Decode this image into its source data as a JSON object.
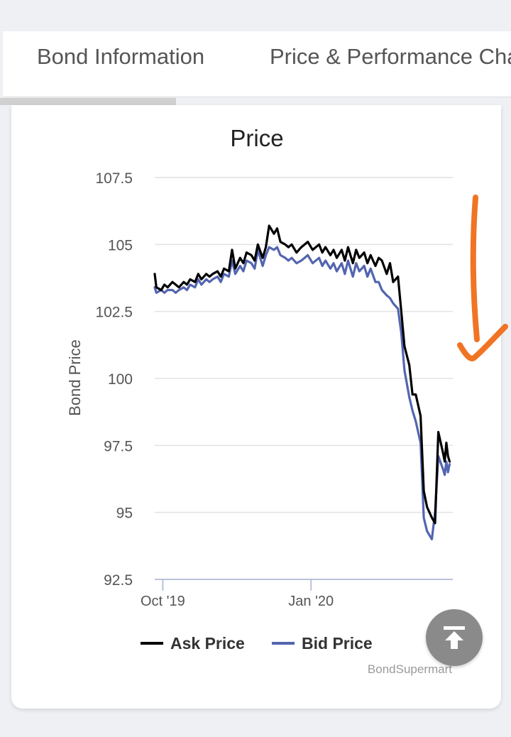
{
  "tabs": [
    {
      "label": "Bond Information"
    },
    {
      "label": "Price & Performance Cha"
    }
  ],
  "colors": {
    "ask": "#000000",
    "bid": "#5365b0",
    "annotation": "#f07424",
    "grid": "#e2e2e2",
    "axis": "#b9c2d9"
  },
  "icons": {
    "scroll_top": "arrow-up-to-line-icon",
    "annotation": "hand-drawn-down-arrow"
  },
  "chart_data": {
    "type": "line",
    "title": "Price",
    "xlabel": "",
    "ylabel": "Bond Price",
    "ylim": [
      92.5,
      107.5
    ],
    "yticks": [
      107.5,
      105,
      102.5,
      100,
      97.5,
      95,
      92.5
    ],
    "ytick_labels": [
      "107.5",
      "105",
      "102.5",
      "100",
      "97.5",
      "95",
      "92.5"
    ],
    "x_ticks": [
      {
        "label": "Oct '19",
        "date": "2019-10-01"
      },
      {
        "label": "Jan '20",
        "date": "2020-01-01"
      }
    ],
    "x_range": [
      "2019-09-26",
      "2020-03-29"
    ],
    "grid": true,
    "legend_position": "bottom",
    "credit": "BondSupermart",
    "x": [
      "2019-09-26",
      "2019-09-27",
      "2019-09-30",
      "2019-10-02",
      "2019-10-04",
      "2019-10-07",
      "2019-10-09",
      "2019-10-11",
      "2019-10-14",
      "2019-10-16",
      "2019-10-18",
      "2019-10-21",
      "2019-10-23",
      "2019-10-25",
      "2019-10-28",
      "2019-10-30",
      "2019-11-01",
      "2019-11-04",
      "2019-11-06",
      "2019-11-08",
      "2019-11-11",
      "2019-11-13",
      "2019-11-15",
      "2019-11-18",
      "2019-11-20",
      "2019-11-22",
      "2019-11-25",
      "2019-11-27",
      "2019-11-29",
      "2019-12-02",
      "2019-12-04",
      "2019-12-06",
      "2019-12-09",
      "2019-12-11",
      "2019-12-13",
      "2019-12-16",
      "2019-12-18",
      "2019-12-20",
      "2019-12-23",
      "2019-12-26",
      "2019-12-30",
      "2020-01-02",
      "2020-01-06",
      "2020-01-08",
      "2020-01-10",
      "2020-01-13",
      "2020-01-15",
      "2020-01-17",
      "2020-01-20",
      "2020-01-22",
      "2020-01-24",
      "2020-01-27",
      "2020-01-29",
      "2020-01-31",
      "2020-02-03",
      "2020-02-05",
      "2020-02-07",
      "2020-02-10",
      "2020-02-12",
      "2020-02-14",
      "2020-02-17",
      "2020-02-19",
      "2020-02-21",
      "2020-02-24",
      "2020-02-26",
      "2020-02-28",
      "2020-03-02",
      "2020-03-04",
      "2020-03-06",
      "2020-03-09",
      "2020-03-11",
      "2020-03-13",
      "2020-03-16",
      "2020-03-18",
      "2020-03-20",
      "2020-03-23",
      "2020-03-24",
      "2020-03-25",
      "2020-03-26",
      "2020-03-27"
    ],
    "series": [
      {
        "name": "Ask Price",
        "values": [
          103.9,
          103.4,
          103.3,
          103.5,
          103.4,
          103.6,
          103.5,
          103.4,
          103.6,
          103.5,
          103.7,
          103.6,
          103.9,
          103.7,
          103.9,
          103.8,
          103.9,
          104.0,
          103.8,
          104.1,
          104.0,
          104.8,
          104.1,
          104.5,
          104.3,
          104.7,
          104.6,
          104.4,
          105.0,
          104.5,
          104.9,
          105.7,
          105.4,
          105.6,
          105.1,
          105.0,
          104.9,
          105.0,
          104.7,
          104.9,
          105.1,
          104.8,
          105.0,
          104.7,
          104.9,
          104.6,
          104.8,
          104.5,
          104.8,
          104.4,
          104.9,
          104.3,
          104.8,
          104.5,
          104.7,
          104.3,
          104.6,
          104.2,
          104.5,
          104.4,
          103.9,
          104.3,
          103.6,
          103.8,
          102.5,
          101.2,
          100.5,
          99.4,
          99.4,
          98.6,
          95.8,
          95.2,
          94.8,
          94.6,
          98.0,
          97.2,
          96.9,
          97.6,
          97.1,
          96.9
        ],
        "style": "solid"
      },
      {
        "name": "Bid Price",
        "values": [
          103.4,
          103.2,
          103.3,
          103.2,
          103.3,
          103.3,
          103.2,
          103.3,
          103.4,
          103.3,
          103.5,
          103.4,
          103.7,
          103.5,
          103.7,
          103.6,
          103.7,
          103.8,
          103.6,
          103.9,
          103.8,
          104.4,
          103.9,
          104.2,
          104.0,
          104.4,
          104.3,
          104.1,
          104.8,
          104.2,
          104.6,
          104.9,
          104.8,
          104.9,
          104.6,
          104.5,
          104.4,
          104.5,
          104.3,
          104.4,
          104.6,
          104.3,
          104.5,
          104.2,
          104.4,
          104.1,
          104.3,
          104.0,
          104.3,
          103.9,
          104.4,
          103.8,
          104.3,
          104.0,
          104.2,
          103.8,
          104.1,
          103.6,
          103.6,
          103.3,
          103.1,
          103.0,
          102.8,
          102.6,
          101.7,
          100.3,
          99.3,
          98.8,
          98.4,
          97.6,
          94.8,
          94.3,
          94.0,
          95.0,
          97.1,
          96.6,
          96.4,
          96.9,
          96.5,
          96.8
        ],
        "style": "solid"
      }
    ]
  }
}
